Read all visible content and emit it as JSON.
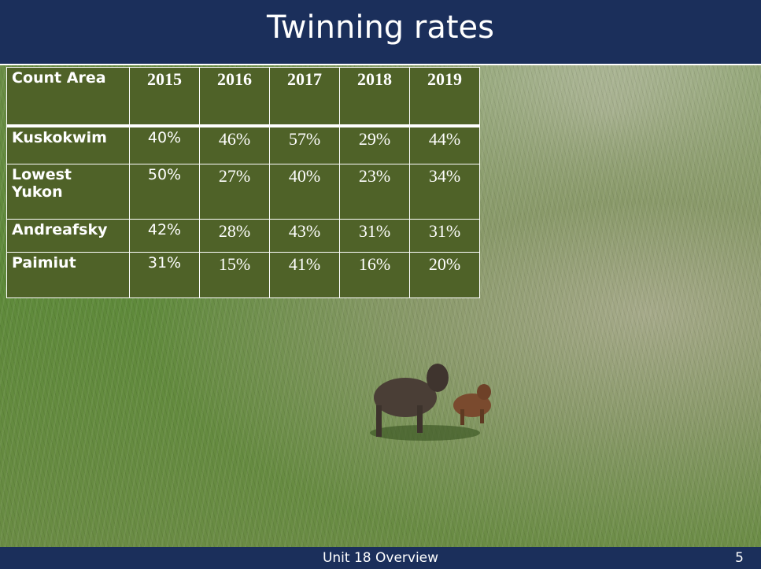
{
  "header": {
    "title": "Twinning rates"
  },
  "table": {
    "columns": [
      "Count Area",
      "2015",
      "2016",
      "2017",
      "2018",
      "2019"
    ],
    "rows": [
      [
        "Kuskokwim",
        "40%",
        "46%",
        "57%",
        "29%",
        "44%"
      ],
      [
        "Lowest Yukon",
        "50%",
        "27%",
        "40%",
        "23%",
        "34%"
      ],
      [
        "Andreafsky",
        "42%",
        "28%",
        "43%",
        "31%",
        "31%"
      ],
      [
        "Paimiut",
        "31%",
        "15%",
        "41%",
        "16%",
        "20%"
      ]
    ]
  },
  "footer": {
    "text": "Unit 18 Overview",
    "page": "5"
  }
}
